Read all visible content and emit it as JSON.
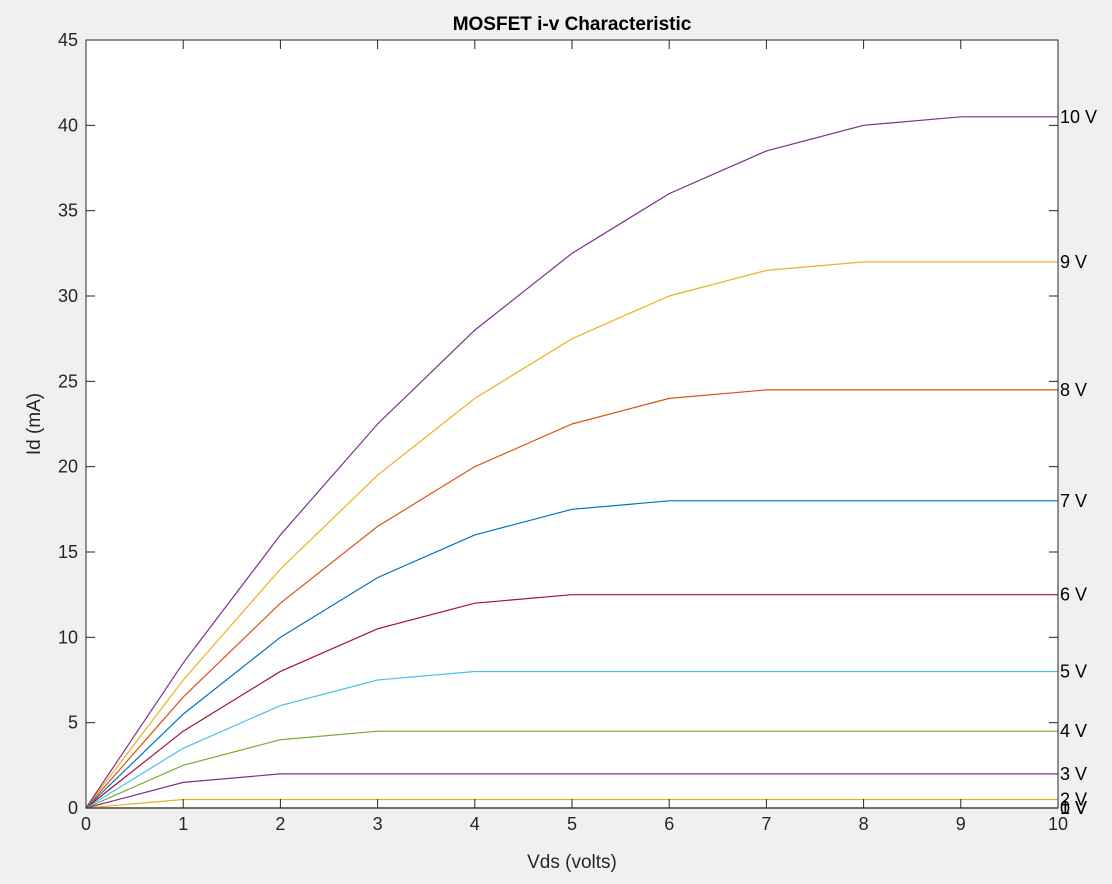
{
  "chart_data": {
    "type": "line",
    "title": "MOSFET i-v Characteristic",
    "xlabel": "Vds (volts)",
    "ylabel": "Id (mA)",
    "xlim": [
      0,
      10
    ],
    "ylim": [
      0,
      45
    ],
    "xticks": [
      "0",
      "1",
      "2",
      "3",
      "4",
      "5",
      "6",
      "7",
      "8",
      "9",
      "10"
    ],
    "yticks": [
      "0",
      "5",
      "10",
      "15",
      "20",
      "25",
      "30",
      "35",
      "40",
      "45"
    ],
    "grid": false,
    "x": [
      0,
      1,
      2,
      3,
      4,
      5,
      6,
      7,
      8,
      9,
      10
    ],
    "series": [
      {
        "name": "0 V",
        "label": "0 V",
        "color": "#0072bd",
        "values": [
          0,
          0,
          0,
          0,
          0,
          0,
          0,
          0,
          0,
          0,
          0
        ]
      },
      {
        "name": "1 V",
        "label": "1 V",
        "color": "#d95319",
        "values": [
          0,
          0,
          0,
          0,
          0,
          0,
          0,
          0,
          0,
          0,
          0
        ]
      },
      {
        "name": "2 V",
        "label": "2 V",
        "color": "#edb120",
        "values": [
          0,
          0.5,
          0.5,
          0.5,
          0.5,
          0.5,
          0.5,
          0.5,
          0.5,
          0.5,
          0.5
        ]
      },
      {
        "name": "3 V",
        "label": "3 V",
        "color": "#7e2f8e",
        "values": [
          0,
          1.5,
          2,
          2,
          2,
          2,
          2,
          2,
          2,
          2,
          2
        ]
      },
      {
        "name": "4 V",
        "label": "4 V",
        "color": "#77ac30",
        "values": [
          0,
          2.5,
          4,
          4.5,
          4.5,
          4.5,
          4.5,
          4.5,
          4.5,
          4.5,
          4.5
        ]
      },
      {
        "name": "5 V",
        "label": "5 V",
        "color": "#4dbeee",
        "values": [
          0,
          3.5,
          6,
          7.5,
          8,
          8,
          8,
          8,
          8,
          8,
          8
        ]
      },
      {
        "name": "6 V",
        "label": "6 V",
        "color": "#a2142f",
        "values": [
          0,
          4.5,
          8,
          10.5,
          12,
          12.5,
          12.5,
          12.5,
          12.5,
          12.5,
          12.5
        ]
      },
      {
        "name": "7 V",
        "label": "7 V",
        "color": "#0072bd",
        "values": [
          0,
          5.5,
          10,
          13.5,
          16,
          17.5,
          18,
          18,
          18,
          18,
          18
        ]
      },
      {
        "name": "8 V",
        "label": "8 V",
        "color": "#d95319",
        "values": [
          0,
          6.5,
          12,
          16.5,
          20,
          22.5,
          24,
          24.5,
          24.5,
          24.5,
          24.5
        ]
      },
      {
        "name": "9 V",
        "label": "9 V",
        "color": "#edb120",
        "values": [
          0,
          7.5,
          14,
          19.5,
          24,
          27.5,
          30,
          31.5,
          32,
          32,
          32
        ]
      },
      {
        "name": "10 V",
        "label": "10 V",
        "color": "#7e2f8e",
        "values": [
          0,
          8.5,
          16,
          22.5,
          28,
          32.5,
          36,
          38.5,
          40,
          40.5,
          40.5
        ]
      }
    ]
  }
}
